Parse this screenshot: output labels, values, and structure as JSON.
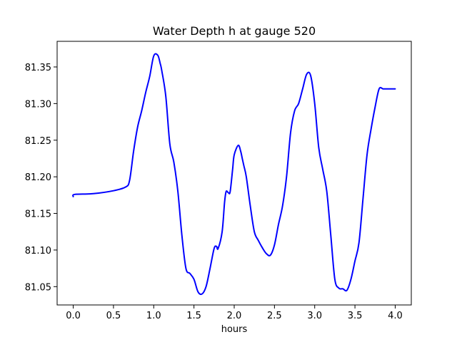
{
  "chart_data": {
    "type": "line",
    "title": "Water Depth h at gauge 520",
    "xlabel": "hours",
    "ylabel": "",
    "xlim": [
      -0.2,
      4.2
    ],
    "ylim": [
      81.025,
      81.385
    ],
    "xticks": [
      0.0,
      0.5,
      1.0,
      1.5,
      2.0,
      2.5,
      3.0,
      3.5,
      4.0
    ],
    "xtick_labels": [
      "0.0",
      "0.5",
      "1.0",
      "1.5",
      "2.0",
      "2.5",
      "3.0",
      "3.5",
      "4.0"
    ],
    "yticks": [
      81.05,
      81.1,
      81.15,
      81.2,
      81.25,
      81.3,
      81.35
    ],
    "ytick_labels": [
      "81.05",
      "81.10",
      "81.15",
      "81.20",
      "81.25",
      "81.30",
      "81.35"
    ],
    "grid": false,
    "line_color": "#0000ff",
    "series": [
      {
        "name": "",
        "x": [
          0.0,
          0.02,
          0.25,
          0.5,
          0.65,
          0.7,
          0.75,
          0.8,
          0.85,
          0.9,
          0.95,
          1.0,
          1.05,
          1.08,
          1.1,
          1.15,
          1.2,
          1.25,
          1.3,
          1.35,
          1.4,
          1.45,
          1.5,
          1.55,
          1.6,
          1.65,
          1.7,
          1.75,
          1.78,
          1.8,
          1.85,
          1.88,
          1.9,
          1.93,
          1.95,
          1.98,
          2.0,
          2.05,
          2.08,
          2.1,
          2.12,
          2.15,
          2.2,
          2.25,
          2.3,
          2.35,
          2.4,
          2.45,
          2.5,
          2.55,
          2.6,
          2.65,
          2.7,
          2.75,
          2.8,
          2.85,
          2.9,
          2.95,
          3.0,
          3.05,
          3.1,
          3.15,
          3.2,
          3.25,
          3.3,
          3.35,
          3.4,
          3.45,
          3.5,
          3.55,
          3.6,
          3.65,
          3.7,
          3.75,
          3.8,
          3.85,
          3.9,
          3.95,
          4.0
        ],
        "y": [
          81.173,
          81.176,
          81.177,
          81.181,
          81.186,
          81.195,
          81.235,
          81.268,
          81.29,
          81.315,
          81.337,
          81.365,
          81.366,
          81.355,
          81.345,
          81.31,
          81.245,
          81.22,
          81.18,
          81.12,
          81.075,
          81.068,
          81.06,
          81.043,
          81.04,
          81.05,
          81.075,
          81.102,
          81.105,
          81.102,
          81.125,
          81.165,
          81.18,
          81.178,
          81.18,
          81.21,
          81.23,
          81.243,
          81.235,
          81.225,
          81.215,
          81.2,
          81.16,
          81.125,
          81.113,
          81.103,
          81.095,
          81.093,
          81.107,
          81.135,
          81.16,
          81.2,
          81.26,
          81.29,
          81.3,
          81.32,
          81.34,
          81.338,
          81.3,
          81.24,
          81.21,
          81.18,
          81.12,
          81.06,
          81.048,
          81.047,
          81.045,
          81.06,
          81.085,
          81.11,
          81.17,
          81.23,
          81.265,
          81.295,
          81.32,
          81.32,
          81.32,
          81.32,
          81.32
        ]
      }
    ]
  }
}
